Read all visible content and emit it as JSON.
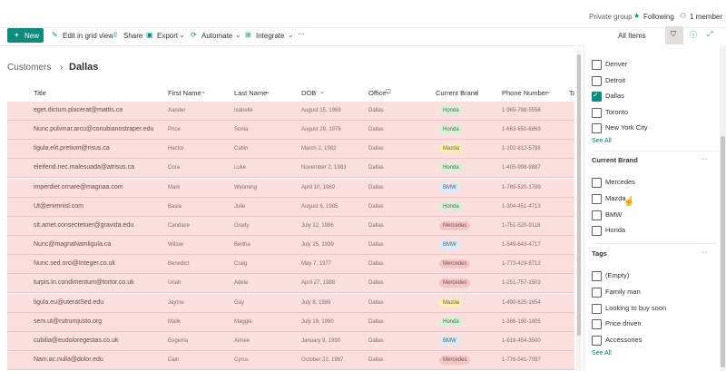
{
  "header": {
    "group_type": "Private group",
    "following": "Following",
    "members": "1 member"
  },
  "commands": {
    "new": "New",
    "items": [
      "Edit in grid view",
      "Share",
      "Export",
      "Automate",
      "Integrate"
    ],
    "view": "All Items"
  },
  "breadcrumb": [
    "Customers",
    "Dallas"
  ],
  "table": {
    "columns": [
      "Title",
      "First Name",
      "Last Name",
      "DOB",
      "Office",
      "Current Brand",
      "Phone Number",
      "Ta"
    ],
    "rows": [
      [
        "eget.dictum.placerat@mattis.ca",
        "Xander",
        "Isabelle",
        "August 15, 1969",
        "Dallas",
        "Honda",
        "1-965-788-5556"
      ],
      [
        "Nunc.pulvinar.arcu@conubianostraper.edu",
        "Price",
        "Sonia",
        "August 29, 1976",
        "Dallas",
        "Honda",
        "1-663-650-6869"
      ],
      [
        "ligula.elit.pretium@risus.ca",
        "Hector",
        "Catlin",
        "March 2, 1982",
        "Dallas",
        "Mazda",
        "1-102-812-5798"
      ],
      [
        "eleifend.nec.malesuada@atrisus.ca",
        "Cora",
        "Luke",
        "November 2, 1983",
        "Dallas",
        "Honda",
        "1-405-998-9887"
      ],
      [
        "imperdiet.ornare@magnaa.com",
        "Mark",
        "Wyoming",
        "April 10, 1989",
        "Dallas",
        "BMW",
        "1-789-520-1789"
      ],
      [
        "Ut@enimnisl.com",
        "Basia",
        "Julie",
        "August 6, 1985",
        "Dallas",
        "Honda",
        "1-304-451-4713"
      ],
      [
        "sit.amet.consectetuer@gravida.edu",
        "Candace",
        "Grady",
        "July 12, 1986",
        "Dallas",
        "Mercedes",
        "1-751-520-9118"
      ],
      [
        "Nunc@magnaNamligula.ca",
        "Willow",
        "Bertha",
        "July 25, 1999",
        "Dallas",
        "BMW",
        "1-549-643-4717"
      ],
      [
        "Nunc.sed.orci@Integer.co.uk",
        "Benedict",
        "Craig",
        "May 7, 1977",
        "Dallas",
        "Mercedes",
        "1-773-429-8712"
      ],
      [
        "turpis.In.condimentum@tortor.co.uk",
        "Uriah",
        "Adele",
        "April 27, 1988",
        "Dallas",
        "Mercedes",
        "1-251-757-1503"
      ],
      [
        "ligula.eu@uteratSed.edu",
        "Jayme",
        "Gay",
        "July 8, 1989",
        "Dallas",
        "Mazda",
        "1-490-625-1654"
      ],
      [
        "sem.ut@rutrumjusto.org",
        "Malik",
        "Maggie",
        "July 19, 1990",
        "Dallas",
        "Honda",
        "1-386-190-1805"
      ],
      [
        "cubilia@eudoloregestas.co.uk",
        "Eugenia",
        "Aimee",
        "January 9, 1990",
        "Dallas",
        "BMW",
        "1-618-454-3500"
      ],
      [
        "Nam.ac.nulla@dolor.edu",
        "Cain",
        "Cyrus",
        "October 22, 1987",
        "Dallas",
        "Mercedes",
        "1-776-541-7097"
      ]
    ]
  },
  "badge_colors": {
    "Honda": "#d3f2d3",
    "Mazda": "#fbeeb0",
    "BMW": "#d6ecfb",
    "Mercedes": "#f7c4c4"
  },
  "filters": {
    "office": {
      "options": [
        {
          "label": "Denver",
          "checked": false
        },
        {
          "label": "Detroit",
          "checked": false
        },
        {
          "label": "Dallas",
          "checked": true
        },
        {
          "label": "Toronto",
          "checked": false
        },
        {
          "label": "New York City",
          "checked": false
        }
      ],
      "see_all": "See All"
    },
    "brand": {
      "title": "Current Brand",
      "options": [
        {
          "label": "Mercedes",
          "checked": false
        },
        {
          "label": "Mazda",
          "checked": false
        },
        {
          "label": "BMW",
          "checked": false
        },
        {
          "label": "Honda",
          "checked": false
        }
      ]
    },
    "tags": {
      "title": "Tags",
      "options": [
        {
          "label": "(Empty)",
          "checked": false
        },
        {
          "label": "Family man",
          "checked": false
        },
        {
          "label": "Looking to buy soon",
          "checked": false
        },
        {
          "label": "Price driven",
          "checked": false
        },
        {
          "label": "Accessories",
          "checked": false
        }
      ],
      "see_all": "See All"
    }
  }
}
